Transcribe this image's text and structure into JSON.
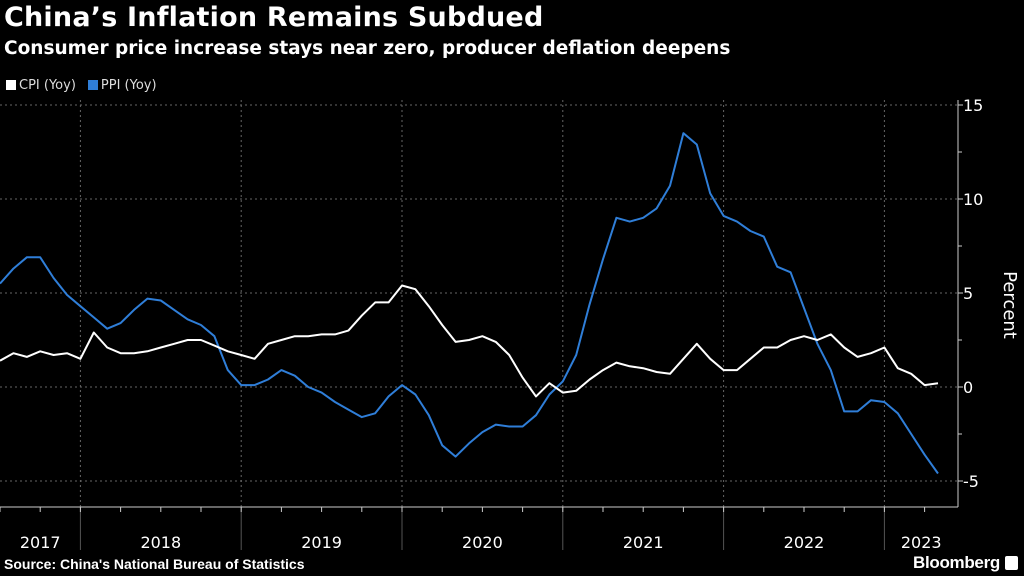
{
  "chart_data": {
    "type": "line",
    "title": "China’s Inflation Remains Subdued",
    "subtitle": "Consumer price increase stays near zero, producer deflation deepens",
    "ylabel": "Percent",
    "xlabel": "",
    "ylim": [
      -6,
      15.5
    ],
    "yticks": [
      15,
      10,
      5,
      0,
      -5
    ],
    "ytick_labels": [
      "15",
      "10",
      "5",
      "0",
      "-5"
    ],
    "year_labels": [
      "2017",
      "2018",
      "2019",
      "2020",
      "2021",
      "2022",
      "2023"
    ],
    "x_start": "2017-07",
    "x_end": "2023-05",
    "grid": true,
    "legend_position": "top-left",
    "series": [
      {
        "name": "CPI (Yoy)",
        "color": "#ffffff",
        "values": [
          1.4,
          1.8,
          1.6,
          1.9,
          1.7,
          1.8,
          1.5,
          2.9,
          2.1,
          1.8,
          1.8,
          1.9,
          2.1,
          2.3,
          2.5,
          2.5,
          2.2,
          1.9,
          1.7,
          1.5,
          2.3,
          2.5,
          2.7,
          2.7,
          2.8,
          2.8,
          3.0,
          3.8,
          4.5,
          4.5,
          5.4,
          5.2,
          4.3,
          3.3,
          2.4,
          2.5,
          2.7,
          2.4,
          1.7,
          0.5,
          -0.5,
          0.2,
          -0.3,
          -0.2,
          0.4,
          0.9,
          1.3,
          1.1,
          1.0,
          0.8,
          0.7,
          1.5,
          2.3,
          1.5,
          0.9,
          0.9,
          1.5,
          2.1,
          2.1,
          2.5,
          2.7,
          2.5,
          2.8,
          2.1,
          1.6,
          1.8,
          2.1,
          1.0,
          0.7,
          0.1,
          0.2
        ]
      },
      {
        "name": "PPI (Yoy)",
        "color": "#2f7ed8",
        "values": [
          5.5,
          6.3,
          6.9,
          6.9,
          5.8,
          4.9,
          4.3,
          3.7,
          3.1,
          3.4,
          4.1,
          4.7,
          4.6,
          4.1,
          3.6,
          3.3,
          2.7,
          0.9,
          0.1,
          0.1,
          0.4,
          0.9,
          0.6,
          0.0,
          -0.3,
          -0.8,
          -1.2,
          -1.6,
          -1.4,
          -0.5,
          0.1,
          -0.4,
          -1.5,
          -3.1,
          -3.7,
          -3.0,
          -2.4,
          -2.0,
          -2.1,
          -2.1,
          -1.5,
          -0.4,
          0.3,
          1.7,
          4.4,
          6.8,
          9.0,
          8.8,
          9.0,
          9.5,
          10.7,
          13.5,
          12.9,
          10.3,
          9.1,
          8.8,
          8.3,
          8.0,
          6.4,
          6.1,
          4.2,
          2.3,
          0.9,
          -1.3,
          -1.3,
          -0.7,
          -0.8,
          -1.4,
          -2.5,
          -3.6,
          -4.6
        ]
      }
    ]
  },
  "footer": {
    "source": "Source: China's National Bureau of Statistics",
    "brand": "Bloomberg"
  }
}
